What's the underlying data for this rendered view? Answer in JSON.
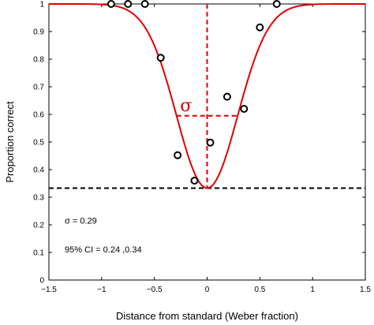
{
  "chart_data": {
    "type": "scatter",
    "title": "",
    "xlabel": "Distance from standard (Weber fraction)",
    "ylabel": "Proportion correct",
    "xlim": [
      -1.5,
      1.5
    ],
    "ylim": [
      0,
      1
    ],
    "xticks": [
      -1.5,
      -1,
      -0.5,
      0,
      0.5,
      1,
      1.5
    ],
    "xtick_labels": [
      "−1.5",
      "−1",
      "−0.5",
      "0",
      "0.5",
      "1",
      "1.5"
    ],
    "yticks": [
      0,
      0.1,
      0.2,
      0.3,
      0.4,
      0.5,
      0.6,
      0.7,
      0.8,
      0.9,
      1
    ],
    "ytick_labels": [
      "0",
      "0.1",
      "0.2",
      "0.3",
      "0.4",
      "0.5",
      "0.6",
      "0.7",
      "0.8",
      "0.9",
      "1"
    ],
    "grid": false,
    "points": [
      {
        "x": -0.91,
        "y": 1.0
      },
      {
        "x": -0.75,
        "y": 1.0
      },
      {
        "x": -0.59,
        "y": 1.0
      },
      {
        "x": -0.44,
        "y": 0.805
      },
      {
        "x": -0.28,
        "y": 0.452
      },
      {
        "x": -0.12,
        "y": 0.36
      },
      {
        "x": 0.03,
        "y": 0.498
      },
      {
        "x": 0.19,
        "y": 0.664
      },
      {
        "x": 0.35,
        "y": 0.62
      },
      {
        "x": 0.5,
        "y": 0.915
      },
      {
        "x": 0.66,
        "y": 1.0
      }
    ],
    "fit_curve": {
      "type": "inverted-gaussian",
      "center": 0,
      "baseline": 0.333,
      "sigma": 0.29,
      "color": "#e00000"
    },
    "chance_line": {
      "y": 0.333,
      "color": "#000000",
      "style": "dashed"
    },
    "center_line": {
      "x": 0,
      "color": "#e00000",
      "style": "dashed"
    },
    "sigma_marker": {
      "label": "σ",
      "x_from": 0,
      "x_to": 0.29,
      "y": 0.595,
      "color": "#e00000"
    },
    "annotations": [
      {
        "text": "σ = 0.29"
      },
      {
        "text": "95% CI = 0.24 ,0.34"
      }
    ]
  }
}
